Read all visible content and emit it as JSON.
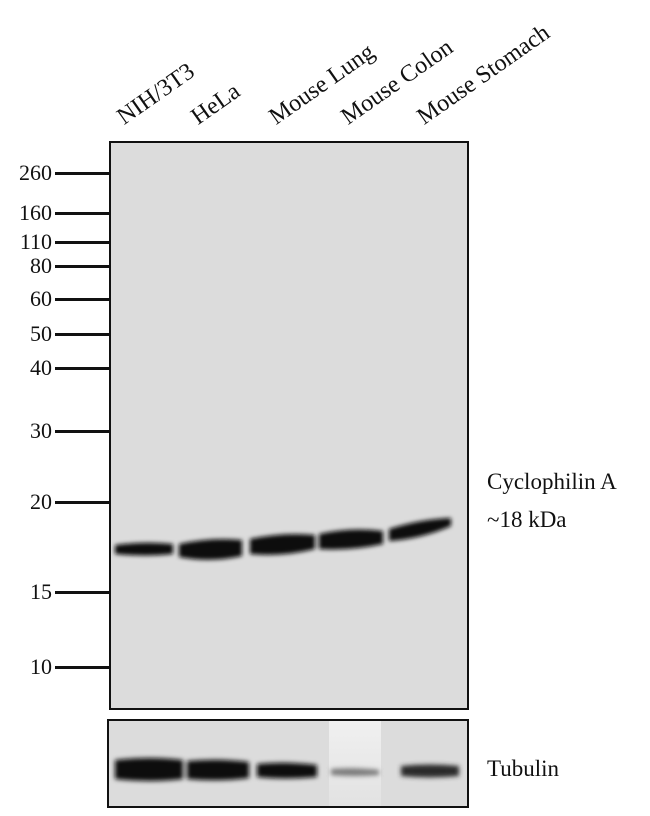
{
  "lanes": [
    "NIH/3T3",
    "HeLa",
    "Mouse Lung",
    "Mouse Colon",
    "Mouse Stomach"
  ],
  "markers": [
    "260",
    "160",
    "110",
    "80",
    "60",
    "50",
    "40",
    "30",
    "20",
    "15",
    "10"
  ],
  "main_blot": {
    "protein_label": "Cyclophilin A",
    "size_label": "~18 kDa"
  },
  "loading_control": {
    "label": "Tubulin",
    "relative_intensity": [
      1.0,
      0.95,
      0.8,
      0.2,
      0.6
    ]
  }
}
